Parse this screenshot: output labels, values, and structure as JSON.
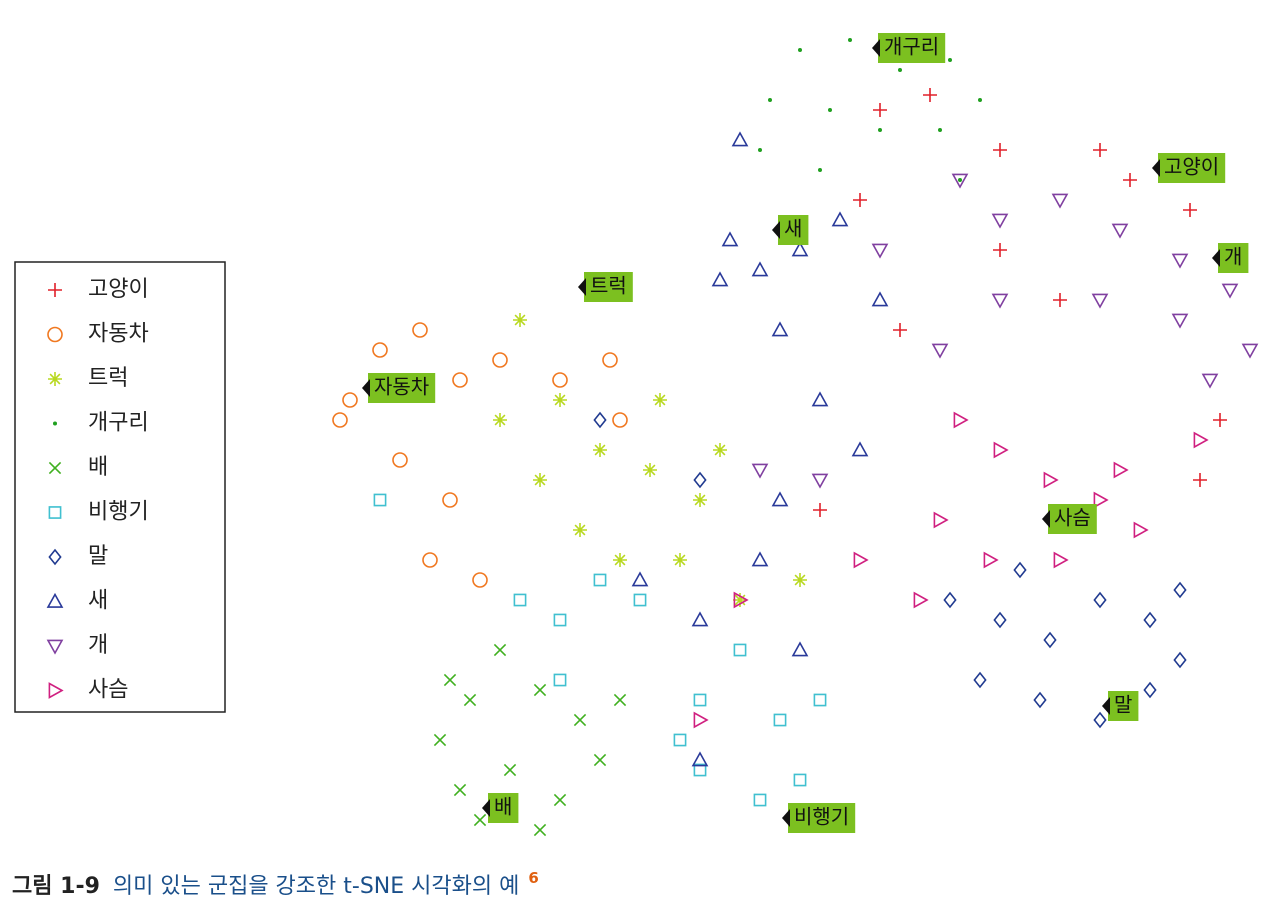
{
  "chart_data": {
    "type": "scatter",
    "xlim": [
      0,
      980
    ],
    "ylim": [
      0,
      850
    ],
    "series": [
      {
        "name": "고양이",
        "color": "#e0202a",
        "marker": "plus",
        "x": [
          580,
          630,
          700,
          800,
          830,
          890,
          560,
          700,
          920,
          900,
          600,
          520,
          760
        ],
        "values": [
          750,
          765,
          710,
          710,
          680,
          650,
          660,
          610,
          440,
          380,
          530,
          350,
          560
        ]
      },
      {
        "name": "자동차",
        "color": "#f07820",
        "marker": "circle",
        "x": [
          50,
          80,
          120,
          160,
          200,
          260,
          310,
          100,
          150,
          130,
          180,
          40,
          320
        ],
        "values": [
          460,
          510,
          530,
          480,
          500,
          480,
          500,
          400,
          360,
          300,
          280,
          440,
          440
        ]
      },
      {
        "name": "트럭",
        "color": "#b8d820",
        "marker": "star",
        "x": [
          220,
          260,
          300,
          350,
          400,
          240,
          280,
          320,
          380,
          440,
          200,
          360,
          420,
          500
        ],
        "values": [
          540,
          460,
          410,
          390,
          360,
          380,
          330,
          300,
          300,
          260,
          440,
          460,
          410,
          280
        ]
      },
      {
        "name": "개구리",
        "color": "#20a020",
        "marker": "dot",
        "x": [
          500,
          550,
          600,
          650,
          680,
          470,
          530,
          580,
          640,
          460,
          660,
          520
        ],
        "values": [
          810,
          820,
          790,
          800,
          760,
          760,
          750,
          730,
          730,
          710,
          680,
          690
        ]
      },
      {
        "name": "배",
        "color": "#40b020",
        "marker": "cross",
        "x": [
          140,
          170,
          200,
          240,
          280,
          320,
          160,
          210,
          260,
          300,
          180,
          240,
          150
        ],
        "values": [
          120,
          160,
          210,
          170,
          140,
          160,
          70,
          90,
          60,
          100,
          40,
          30,
          180
        ]
      },
      {
        "name": "비행기",
        "color": "#40c0d0",
        "marker": "square",
        "x": [
          220,
          260,
          300,
          340,
          260,
          400,
          440,
          480,
          520,
          400,
          460,
          500,
          380,
          80
        ],
        "values": [
          260,
          240,
          280,
          260,
          180,
          160,
          210,
          140,
          160,
          90,
          60,
          80,
          120,
          360
        ]
      },
      {
        "name": "말",
        "color": "#203a90",
        "marker": "diamond",
        "x": [
          650,
          700,
          750,
          800,
          850,
          880,
          680,
          740,
          800,
          850,
          880,
          720,
          300,
          400
        ],
        "values": [
          260,
          240,
          220,
          260,
          240,
          200,
          180,
          160,
          140,
          170,
          270,
          290,
          440,
          380
        ]
      },
      {
        "name": "새",
        "color": "#2a3a9a",
        "marker": "tri-up",
        "x": [
          430,
          460,
          500,
          540,
          420,
          480,
          520,
          560,
          480,
          460,
          400,
          340,
          580,
          440,
          500,
          400
        ],
        "values": [
          620,
          590,
          610,
          640,
          580,
          530,
          460,
          410,
          360,
          300,
          240,
          280,
          560,
          720,
          210,
          100
        ]
      },
      {
        "name": "개",
        "color": "#8040a0",
        "marker": "tri-down",
        "x": [
          660,
          700,
          760,
          820,
          880,
          930,
          950,
          880,
          800,
          700,
          640,
          580,
          910,
          520,
          460
        ],
        "values": [
          680,
          640,
          660,
          630,
          600,
          570,
          510,
          540,
          560,
          560,
          510,
          610,
          480,
          380,
          390
        ]
      },
      {
        "name": "사슴",
        "color": "#d02080",
        "marker": "tri-right",
        "x": [
          660,
          700,
          750,
          800,
          840,
          640,
          690,
          760,
          820,
          620,
          440,
          400,
          900,
          560
        ],
        "values": [
          440,
          410,
          380,
          360,
          330,
          340,
          300,
          300,
          390,
          260,
          260,
          140,
          420,
          300
        ]
      }
    ],
    "annotations": [
      {
        "text": "개구리",
        "x": 572,
        "y": 812
      },
      {
        "text": "고양이",
        "x": 852,
        "y": 692
      },
      {
        "text": "새",
        "x": 472,
        "y": 630
      },
      {
        "text": "개",
        "x": 912,
        "y": 602
      },
      {
        "text": "트럭",
        "x": 278,
        "y": 573
      },
      {
        "text": "자동차",
        "x": 62,
        "y": 472
      },
      {
        "text": "사슴",
        "x": 742,
        "y": 341
      },
      {
        "text": "말",
        "x": 802,
        "y": 154
      },
      {
        "text": "배",
        "x": 182,
        "y": 52
      },
      {
        "text": "비행기",
        "x": 482,
        "y": 42
      }
    ],
    "caption": {
      "label": "그림 1-9",
      "text": "의미 있는 군집을 강조한 t-SNE 시각화의 예",
      "footnote": "6"
    }
  }
}
